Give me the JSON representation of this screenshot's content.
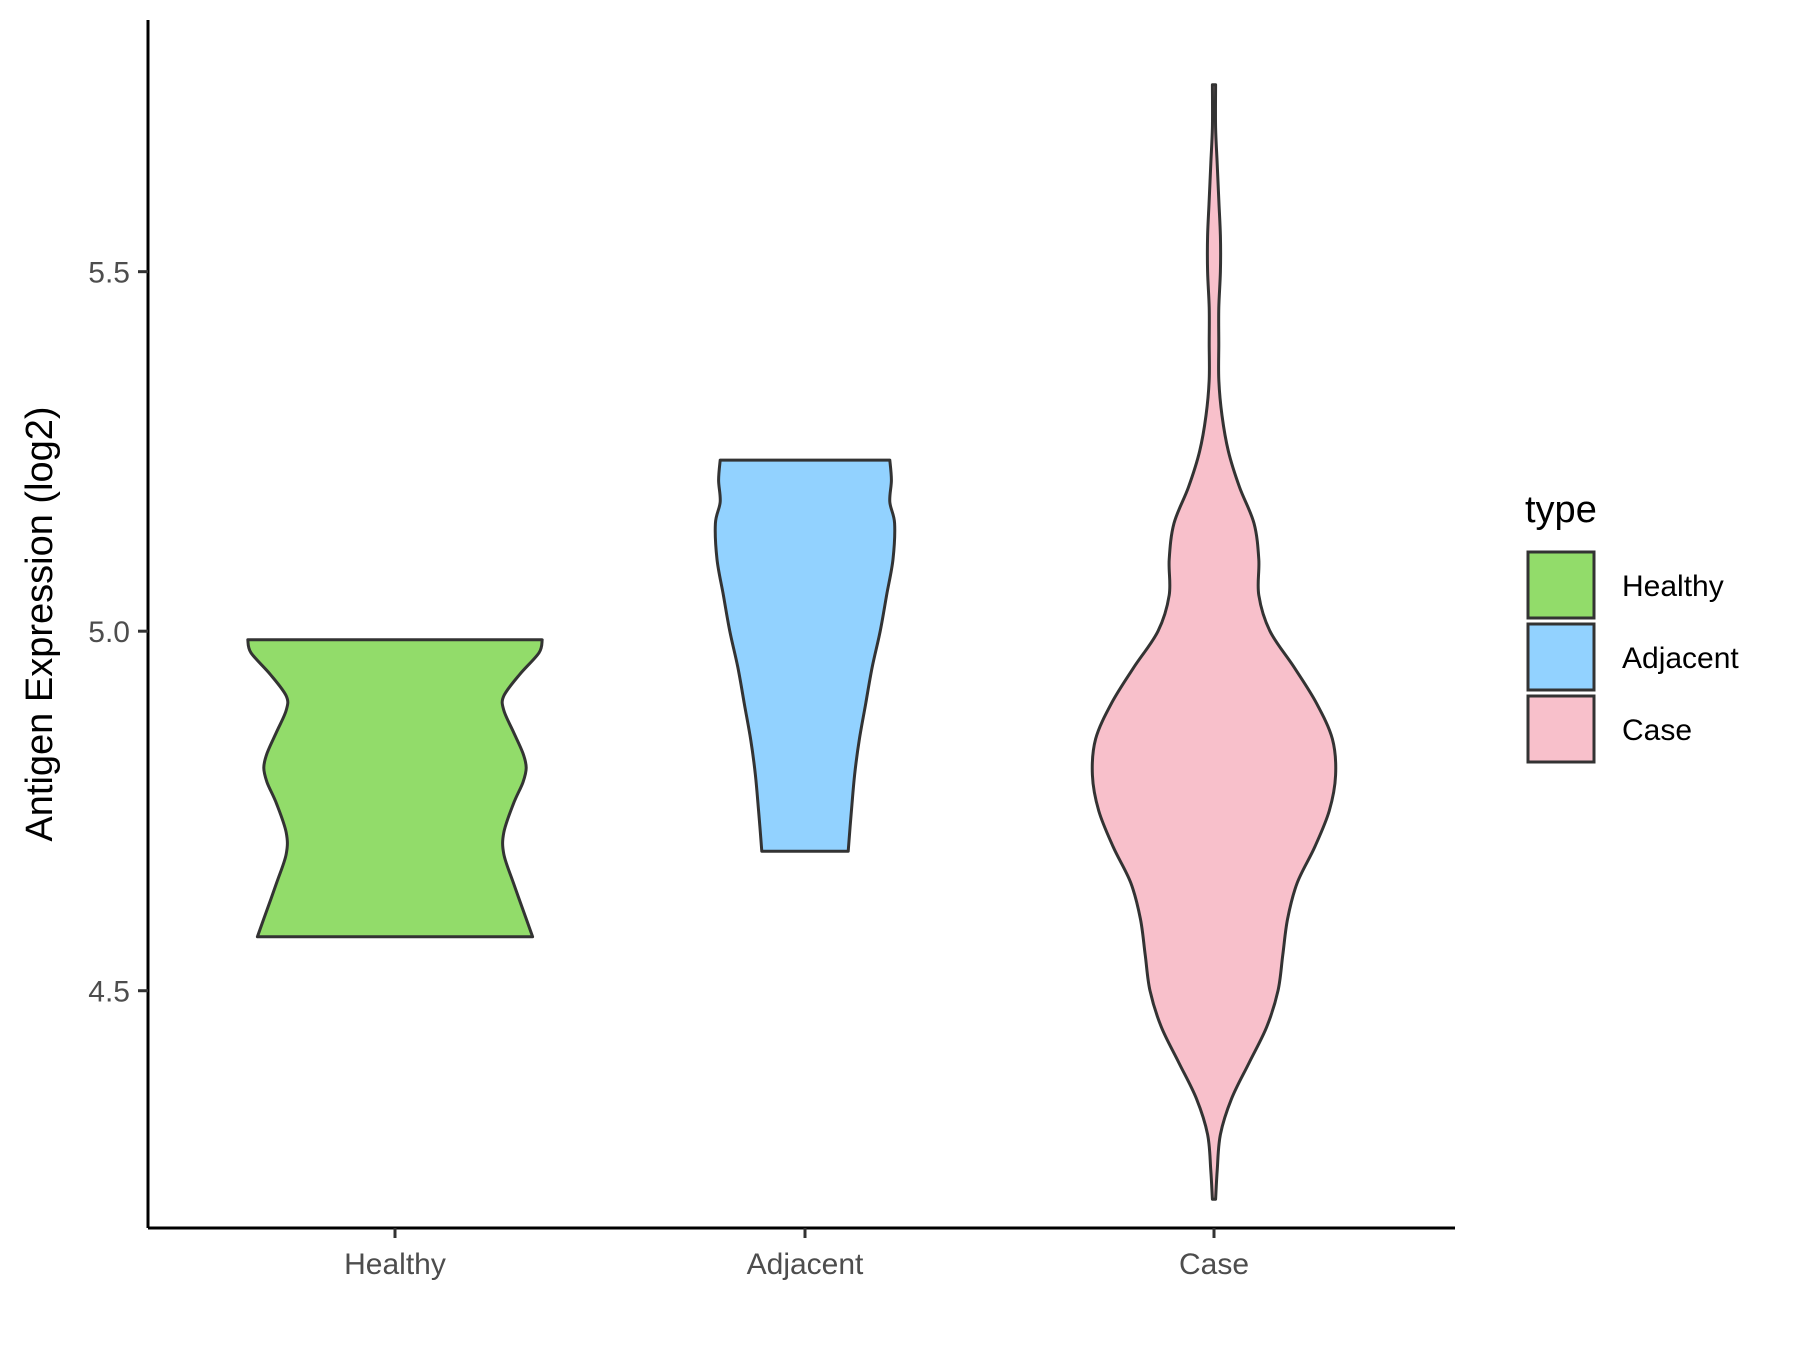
{
  "chart_data": {
    "type": "violin",
    "categories": [
      "Healthy",
      "Adjacent",
      "Case"
    ],
    "ylabel": "Antigen Expression (log2)",
    "xlabel": "",
    "ylim": [
      4.17,
      5.85
    ],
    "yticks": [
      4.5,
      5.0,
      5.5
    ],
    "ytick_labels": [
      "4.5",
      "5.0",
      "5.5"
    ],
    "grid": false,
    "legend": {
      "title": "type",
      "position": "right",
      "entries": [
        "Healthy",
        "Adjacent",
        "Case"
      ]
    },
    "colors": {
      "Healthy": "#92dc6a",
      "Adjacent": "#92d2ff",
      "Case": "#f8c0cb",
      "outline": "#333333"
    },
    "series": [
      {
        "name": "Healthy",
        "min": 4.575,
        "max": 4.988,
        "density_profile": [
          [
            4.575,
            0.86
          ],
          [
            4.6,
            0.82
          ],
          [
            4.65,
            0.74
          ],
          [
            4.69,
            0.68
          ],
          [
            4.72,
            0.68
          ],
          [
            4.76,
            0.74
          ],
          [
            4.79,
            0.8
          ],
          [
            4.81,
            0.82
          ],
          [
            4.83,
            0.8
          ],
          [
            4.86,
            0.74
          ],
          [
            4.89,
            0.68
          ],
          [
            4.91,
            0.68
          ],
          [
            4.94,
            0.78
          ],
          [
            4.97,
            0.9
          ],
          [
            4.988,
            0.92
          ]
        ]
      },
      {
        "name": "Adjacent",
        "min": 4.694,
        "max": 5.238,
        "density_profile": [
          [
            4.694,
            0.27
          ],
          [
            4.75,
            0.29
          ],
          [
            4.8,
            0.31
          ],
          [
            4.85,
            0.34
          ],
          [
            4.9,
            0.38
          ],
          [
            4.95,
            0.42
          ],
          [
            5.0,
            0.47
          ],
          [
            5.05,
            0.51
          ],
          [
            5.1,
            0.55
          ],
          [
            5.15,
            0.56
          ],
          [
            5.18,
            0.53
          ],
          [
            5.21,
            0.54
          ],
          [
            5.238,
            0.53
          ]
        ]
      },
      {
        "name": "Case",
        "min": 4.21,
        "max": 5.76,
        "density_profile": [
          [
            4.21,
            0.01
          ],
          [
            4.25,
            0.02
          ],
          [
            4.3,
            0.04
          ],
          [
            4.35,
            0.11
          ],
          [
            4.4,
            0.22
          ],
          [
            4.45,
            0.33
          ],
          [
            4.5,
            0.4
          ],
          [
            4.55,
            0.43
          ],
          [
            4.6,
            0.46
          ],
          [
            4.65,
            0.52
          ],
          [
            4.7,
            0.63
          ],
          [
            4.75,
            0.72
          ],
          [
            4.8,
            0.76
          ],
          [
            4.85,
            0.74
          ],
          [
            4.9,
            0.64
          ],
          [
            4.95,
            0.5
          ],
          [
            5.0,
            0.35
          ],
          [
            5.05,
            0.28
          ],
          [
            5.1,
            0.28
          ],
          [
            5.15,
            0.25
          ],
          [
            5.2,
            0.16
          ],
          [
            5.25,
            0.09
          ],
          [
            5.3,
            0.05
          ],
          [
            5.35,
            0.03
          ],
          [
            5.4,
            0.03
          ],
          [
            5.45,
            0.03
          ],
          [
            5.5,
            0.04
          ],
          [
            5.55,
            0.04
          ],
          [
            5.6,
            0.03
          ],
          [
            5.65,
            0.02
          ],
          [
            5.7,
            0.01
          ],
          [
            5.76,
            0.01
          ]
        ]
      }
    ]
  }
}
